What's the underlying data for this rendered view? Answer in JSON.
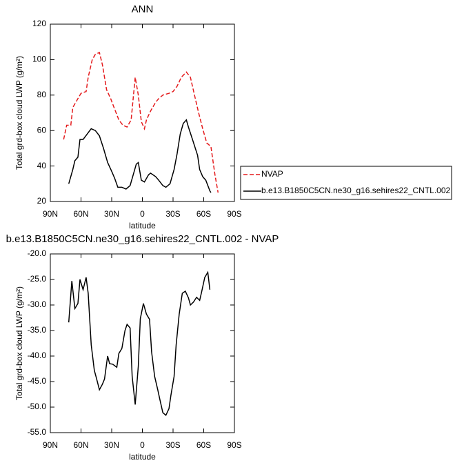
{
  "chart_data": [
    {
      "type": "line",
      "title": "ANN",
      "xlabel": "latitude",
      "ylabel": "Total grd-box cloud LWP (g/m²)",
      "xlim": [
        90,
        -90
      ],
      "xticks": [
        {
          "value": 90,
          "label": "90N"
        },
        {
          "value": 60,
          "label": "60N"
        },
        {
          "value": 30,
          "label": "30N"
        },
        0,
        {
          "value": -30,
          "label": "30S"
        },
        {
          "value": -60,
          "label": "60S"
        },
        {
          "value": -90,
          "label": "90S"
        }
      ],
      "ylim": [
        20,
        120
      ],
      "yticks": [
        20,
        40,
        60,
        80,
        100,
        120
      ],
      "legend": "outside-right",
      "series": [
        {
          "name": "NVAP",
          "color": "#e41a1c",
          "line_style": "dashed",
          "x": [
            77,
            74,
            70,
            68,
            63,
            60,
            55,
            53,
            49,
            46,
            42,
            39,
            35,
            31,
            27,
            23,
            19,
            15,
            11,
            7,
            4,
            1,
            -2,
            -4,
            -8,
            -13,
            -16,
            -20,
            -26,
            -30,
            -34,
            -38,
            -43,
            -47,
            -51,
            -55,
            -59,
            -63,
            -67,
            -71,
            -74
          ],
          "values": [
            55,
            63,
            63,
            73,
            78,
            81,
            82,
            90,
            100,
            103,
            104,
            97,
            83,
            78,
            72,
            66,
            63,
            62,
            66,
            90,
            80,
            65,
            61,
            66,
            71,
            76,
            78,
            80,
            81,
            82,
            85,
            90,
            93,
            90,
            80,
            70,
            61,
            53,
            51,
            35,
            25
          ]
        },
        {
          "name": "b.e13.B1850C5CN.ne30_g16.sehires22_CNTL.002",
          "color": "#000000",
          "line_style": "solid",
          "x": [
            72,
            68,
            66,
            63,
            61,
            58,
            54,
            50,
            46,
            42,
            38,
            34,
            30,
            27,
            24,
            20,
            16,
            12,
            9,
            6,
            4,
            1,
            -2,
            -6,
            -8,
            -13,
            -16,
            -20,
            -23,
            -27,
            -31,
            -34,
            -37,
            -40,
            -43,
            -45,
            -49,
            -54,
            -56,
            -59,
            -62,
            -66,
            -67
          ],
          "values": [
            30,
            38,
            43,
            45,
            55,
            55,
            58,
            61,
            60,
            57,
            50,
            42,
            37,
            33,
            28,
            28,
            27,
            29,
            35,
            41,
            42,
            32,
            31,
            35,
            36,
            34,
            32,
            29,
            28,
            30,
            38,
            47,
            58,
            64,
            66,
            62,
            55,
            46,
            38,
            34,
            32,
            26,
            25
          ]
        }
      ]
    },
    {
      "type": "line",
      "title": "b.e13.B1850C5CN.ne30_g16.sehires22_CNTL.002 - NVAP",
      "xlabel": "latitude",
      "ylabel": "Total grd-box cloud LWP (g/m²)",
      "xlim": [
        90,
        -90
      ],
      "xticks": [
        {
          "value": 90,
          "label": "90N"
        },
        {
          "value": 60,
          "label": "60N"
        },
        {
          "value": 30,
          "label": "30N"
        },
        0,
        {
          "value": -30,
          "label": "30S"
        },
        {
          "value": -60,
          "label": "60S"
        },
        {
          "value": -90,
          "label": "90S"
        }
      ],
      "ylim": [
        -55,
        -20
      ],
      "yticks": [
        {
          "value": -55,
          "label": "-55.0"
        },
        {
          "value": -50,
          "label": "-50.0"
        },
        {
          "value": -45,
          "label": "-45.0"
        },
        {
          "value": -40,
          "label": "-40.0"
        },
        {
          "value": -35,
          "label": "-35.0"
        },
        {
          "value": -30,
          "label": "-30.0"
        },
        {
          "value": -25,
          "label": "-25.0"
        },
        {
          "value": -20,
          "label": "-20.0"
        }
      ],
      "series": [
        {
          "color": "#000000",
          "line_style": "solid",
          "x": [
            72,
            69,
            66,
            63,
            61,
            58,
            55,
            53,
            50,
            47,
            45,
            42,
            39,
            37,
            34,
            32,
            29,
            25,
            23,
            20,
            17,
            15,
            12,
            10,
            7,
            4,
            2,
            -1,
            -4,
            -7,
            -9,
            -12,
            -15,
            -17,
            -20,
            -23,
            -26,
            -28,
            -31,
            -33,
            -36,
            -39,
            -42,
            -45,
            -47,
            -50,
            -53,
            -56,
            -58,
            -61,
            -64,
            -66
          ],
          "values": [
            -33.4,
            -25.3,
            -30.7,
            -29.7,
            -25,
            -27,
            -24.6,
            -27.7,
            -37.8,
            -42.8,
            -44.3,
            -46.6,
            -45.5,
            -44.5,
            -40,
            -41.5,
            -41.6,
            -42.2,
            -39.5,
            -38.5,
            -35,
            -33.8,
            -34.5,
            -44,
            -49.5,
            -42,
            -32.7,
            -29.7,
            -31.8,
            -32.8,
            -39.2,
            -44,
            -46.6,
            -48.4,
            -51.1,
            -51.6,
            -50.3,
            -47.6,
            -44,
            -37.8,
            -31.8,
            -27.7,
            -27.3,
            -28.6,
            -30,
            -29.4,
            -28.5,
            -29.1,
            -27.4,
            -24.6,
            -23.6,
            -27
          ]
        }
      ]
    }
  ]
}
